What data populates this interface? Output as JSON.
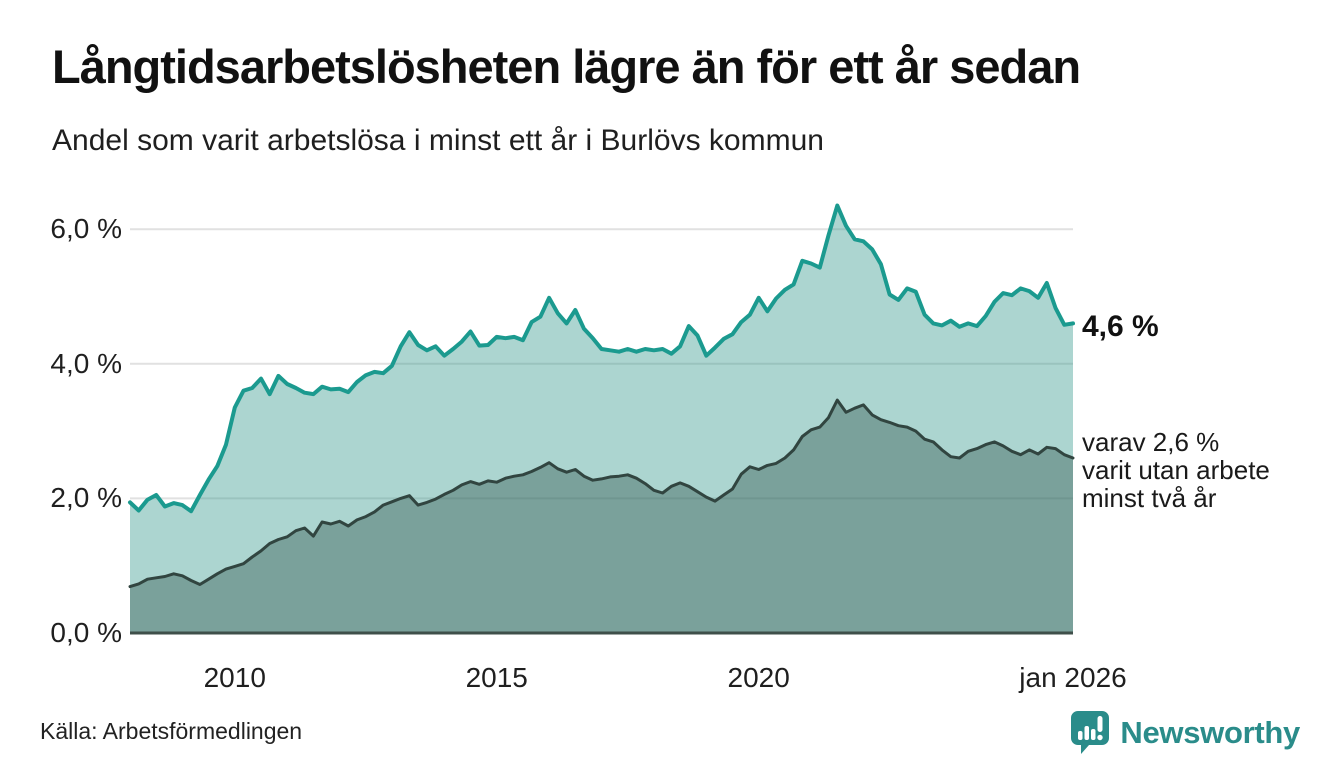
{
  "header": {
    "title": "Långtidsarbetslösheten lägre än för ett år sedan",
    "subtitle": "Andel som varit arbetslösa i minst ett år i Burlövs kommun"
  },
  "annotations": {
    "total_value_label": "4,6 %",
    "secondary_lines": [
      "varav 2,6 %",
      "varit utan arbete",
      "minst två år"
    ]
  },
  "footer": {
    "source": "Källa: Arbetsförmedlingen",
    "brand": "Newsworthy",
    "brand_color": "#2a8c8a",
    "brand_icon": "newsworthy-bubble-barchart-icon"
  },
  "colors": {
    "line_total": "#1b9a8f",
    "fill_total": "rgba(58,155,143,0.42)",
    "line_two_years": "#314540",
    "fill_two_years": "rgba(43,76,69,0.38)",
    "gridline": "#e1e1e1",
    "axis_line": "#3f4f4a",
    "text": "#1a1a1a"
  },
  "chart_data": {
    "type": "area",
    "title": "Långtidsarbetslösheten lägre än för ett år sedan",
    "subtitle": "Andel som varit arbetslösa i minst ett år i Burlövs kommun",
    "unit": "%",
    "x_start_year": 2008,
    "x_end_year": 2026,
    "point_interval_months": 2,
    "xlim": [
      2008,
      2026
    ],
    "ylim": [
      0,
      6.5
    ],
    "grid": "horizontal",
    "legend": "none",
    "x_ticks": [
      {
        "value": 2010,
        "label": "2010"
      },
      {
        "value": 2015,
        "label": "2015"
      },
      {
        "value": 2020,
        "label": "2020"
      },
      {
        "value": 2026,
        "label": "jan 2026"
      }
    ],
    "y_ticks": [
      {
        "value": 0,
        "label": "0,0 %"
      },
      {
        "value": 2,
        "label": "2,0 %"
      },
      {
        "value": 4,
        "label": "4,0 %"
      },
      {
        "value": 6,
        "label": "6,0 %"
      }
    ],
    "series": [
      {
        "name": "varit arbetslösa i minst ett år",
        "color": "#1b9a8f",
        "fill": "rgba(58,155,143,0.42)",
        "line_width": 4,
        "last_value": 4.6,
        "last_value_label": "4,6 %",
        "values": [
          1.94,
          1.82,
          1.98,
          2.05,
          1.88,
          1.93,
          1.9,
          1.81,
          2.05,
          2.28,
          2.48,
          2.8,
          3.35,
          3.6,
          3.64,
          3.78,
          3.55,
          3.82,
          3.7,
          3.64,
          3.57,
          3.55,
          3.66,
          3.62,
          3.63,
          3.58,
          3.73,
          3.83,
          3.88,
          3.86,
          3.97,
          4.26,
          4.47,
          4.28,
          4.2,
          4.26,
          4.12,
          4.22,
          4.33,
          4.48,
          4.27,
          4.28,
          4.4,
          4.38,
          4.4,
          4.35,
          4.62,
          4.7,
          4.98,
          4.75,
          4.6,
          4.8,
          4.52,
          4.38,
          4.22,
          4.2,
          4.18,
          4.22,
          4.18,
          4.22,
          4.2,
          4.22,
          4.15,
          4.26,
          4.56,
          4.42,
          4.12,
          4.24,
          4.37,
          4.44,
          4.62,
          4.73,
          4.98,
          4.78,
          4.97,
          5.1,
          5.18,
          5.53,
          5.49,
          5.43,
          5.91,
          6.35,
          6.05,
          5.85,
          5.82,
          5.7,
          5.48,
          5.03,
          4.95,
          5.12,
          5.07,
          4.73,
          4.6,
          4.57,
          4.64,
          4.55,
          4.6,
          4.56,
          4.71,
          4.92,
          5.05,
          5.02,
          5.12,
          5.08,
          4.98,
          5.2,
          4.83,
          4.58,
          4.6
        ]
      },
      {
        "name": "varit utan arbete minst två år",
        "color": "#314540",
        "fill": "rgba(43,76,69,0.38)",
        "line_width": 3,
        "last_value": 2.6,
        "last_value_label": "2,6 %",
        "values": [
          0.69,
          0.73,
          0.8,
          0.82,
          0.84,
          0.88,
          0.85,
          0.78,
          0.72,
          0.8,
          0.88,
          0.95,
          0.99,
          1.03,
          1.13,
          1.22,
          1.33,
          1.39,
          1.43,
          1.52,
          1.56,
          1.44,
          1.65,
          1.62,
          1.66,
          1.59,
          1.68,
          1.73,
          1.8,
          1.9,
          1.95,
          2.0,
          2.04,
          1.9,
          1.94,
          1.99,
          2.06,
          2.12,
          2.2,
          2.25,
          2.21,
          2.26,
          2.24,
          2.3,
          2.33,
          2.35,
          2.4,
          2.46,
          2.53,
          2.44,
          2.39,
          2.43,
          2.33,
          2.27,
          2.29,
          2.32,
          2.33,
          2.35,
          2.3,
          2.22,
          2.12,
          2.08,
          2.18,
          2.23,
          2.18,
          2.1,
          2.02,
          1.96,
          2.05,
          2.14,
          2.36,
          2.47,
          2.43,
          2.49,
          2.52,
          2.6,
          2.72,
          2.92,
          3.02,
          3.06,
          3.2,
          3.46,
          3.28,
          3.34,
          3.39,
          3.24,
          3.17,
          3.13,
          3.08,
          3.06,
          3.0,
          2.88,
          2.84,
          2.72,
          2.62,
          2.6,
          2.7,
          2.74,
          2.8,
          2.84,
          2.78,
          2.7,
          2.65,
          2.72,
          2.66,
          2.76,
          2.74,
          2.65,
          2.6
        ]
      }
    ]
  }
}
